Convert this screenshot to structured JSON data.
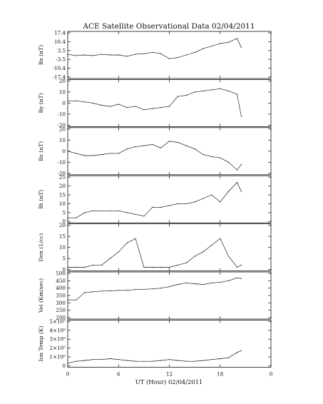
{
  "chart_data": {
    "type": "line",
    "title": "ACE Satellite Observational Data   02/04/2011",
    "xlabel": "UT (Hour)   02/04/2011",
    "xlim": [
      0,
      24
    ],
    "x_ticks": [
      "0",
      "6",
      "12",
      "18",
      "0"
    ],
    "panels": [
      {
        "ylabel": "Bx (nT)",
        "ylim": [
          -17.4,
          17.4
        ],
        "y_ticks": [
          "17.4",
          "10.4",
          "3.5",
          "-3.5",
          "-10.4",
          "-17.4"
        ],
        "x": [
          0,
          1,
          2,
          3,
          4,
          5,
          6,
          7,
          8,
          9,
          10,
          11,
          12,
          13,
          14,
          15,
          16,
          17,
          18,
          19,
          20,
          20.5
        ],
        "y": [
          0.5,
          -0.5,
          0,
          -0.5,
          0.5,
          0,
          0,
          -1,
          0.5,
          1,
          2,
          1,
          -3,
          -2,
          0,
          2,
          5,
          7,
          9,
          10,
          13,
          6
        ]
      },
      {
        "ylabel": "By (nT)",
        "ylim": [
          -20,
          20
        ],
        "y_ticks": [
          "20",
          "10",
          "0",
          "-10",
          "-20"
        ],
        "x": [
          0,
          1,
          2,
          3,
          4,
          5,
          6,
          7,
          8,
          9,
          10,
          11,
          12,
          13,
          14,
          15,
          16,
          17,
          18,
          19,
          20,
          20.5
        ],
        "y": [
          2,
          2,
          1,
          0,
          -2,
          -3,
          -1,
          -4,
          -3,
          -6,
          -5,
          -4,
          -3,
          6,
          7,
          10,
          11,
          12,
          13,
          11,
          8,
          -12
        ]
      },
      {
        "ylabel": "Bz (nT)",
        "ylim": [
          -20,
          20
        ],
        "y_ticks": [
          "20",
          "10",
          "0",
          "-10",
          "-20"
        ],
        "x": [
          0,
          1,
          2,
          3,
          4,
          5,
          6,
          7,
          8,
          9,
          10,
          11,
          12,
          13,
          14,
          15,
          16,
          17,
          18,
          19,
          20,
          20.5
        ],
        "y": [
          0,
          -2,
          -4,
          -4,
          -3,
          -2,
          -2,
          2,
          4,
          5,
          6,
          3,
          9,
          8,
          5,
          2,
          -3,
          -5,
          -6,
          -10,
          -17,
          -12
        ]
      },
      {
        "ylabel": "Bt (nT)",
        "ylim": [
          0,
          25
        ],
        "y_ticks": [
          "25",
          "20",
          "15",
          "10",
          "5",
          "0"
        ],
        "x": [
          0,
          1,
          2,
          3,
          4,
          5,
          6,
          7,
          8,
          9,
          10,
          11,
          12,
          13,
          14,
          15,
          16,
          17,
          18,
          19,
          20,
          20.5
        ],
        "y": [
          2,
          2,
          5,
          6,
          6,
          6,
          6,
          5,
          4,
          3,
          8,
          8,
          9,
          10,
          10,
          11,
          13,
          15,
          11,
          17,
          22,
          17
        ]
      },
      {
        "ylabel": "Den (1/cc)",
        "ylim": [
          0,
          20
        ],
        "y_ticks": [
          "20",
          "15",
          "10",
          "5",
          "0"
        ],
        "x": [
          0,
          1,
          2,
          3,
          4,
          5,
          6,
          7,
          8,
          9,
          10,
          11,
          12,
          13,
          14,
          15,
          16,
          17,
          18,
          19,
          20,
          20.5
        ],
        "y": [
          1,
          1,
          1,
          2,
          2,
          5,
          8,
          12,
          14,
          1,
          1,
          1,
          1,
          2,
          3,
          6,
          8,
          11,
          14,
          6,
          1,
          2
        ]
      },
      {
        "ylabel": "Vel (Km/sec)",
        "ylim": [
          200,
          500
        ],
        "y_ticks": [
          "500",
          "450",
          "400",
          "350",
          "300",
          "250",
          "200"
        ],
        "x": [
          0,
          1,
          2,
          3,
          4,
          5,
          6,
          7,
          8,
          9,
          10,
          11,
          12,
          13,
          14,
          15,
          16,
          17,
          18,
          19,
          20,
          20.5
        ],
        "y": [
          320,
          320,
          370,
          375,
          380,
          382,
          385,
          385,
          390,
          392,
          395,
          400,
          410,
          425,
          435,
          430,
          425,
          435,
          440,
          450,
          470,
          465
        ]
      },
      {
        "ylabel": "Ion Temp (K)",
        "ylim": [
          0,
          500000
        ],
        "y_ticks": [
          "5×10⁵",
          "4×10⁵",
          "3×10⁵",
          "2×10⁵",
          "1×10⁵",
          "0"
        ],
        "x": [
          0,
          1,
          2,
          3,
          4,
          5,
          6,
          7,
          8,
          9,
          10,
          11,
          12,
          13,
          14,
          15,
          16,
          17,
          18,
          19,
          20,
          20.5
        ],
        "y": [
          30000,
          50000,
          60000,
          70000,
          70000,
          80000,
          70000,
          60000,
          50000,
          50000,
          50000,
          60000,
          70000,
          60000,
          50000,
          50000,
          60000,
          70000,
          80000,
          90000,
          150000,
          170000
        ]
      }
    ]
  }
}
